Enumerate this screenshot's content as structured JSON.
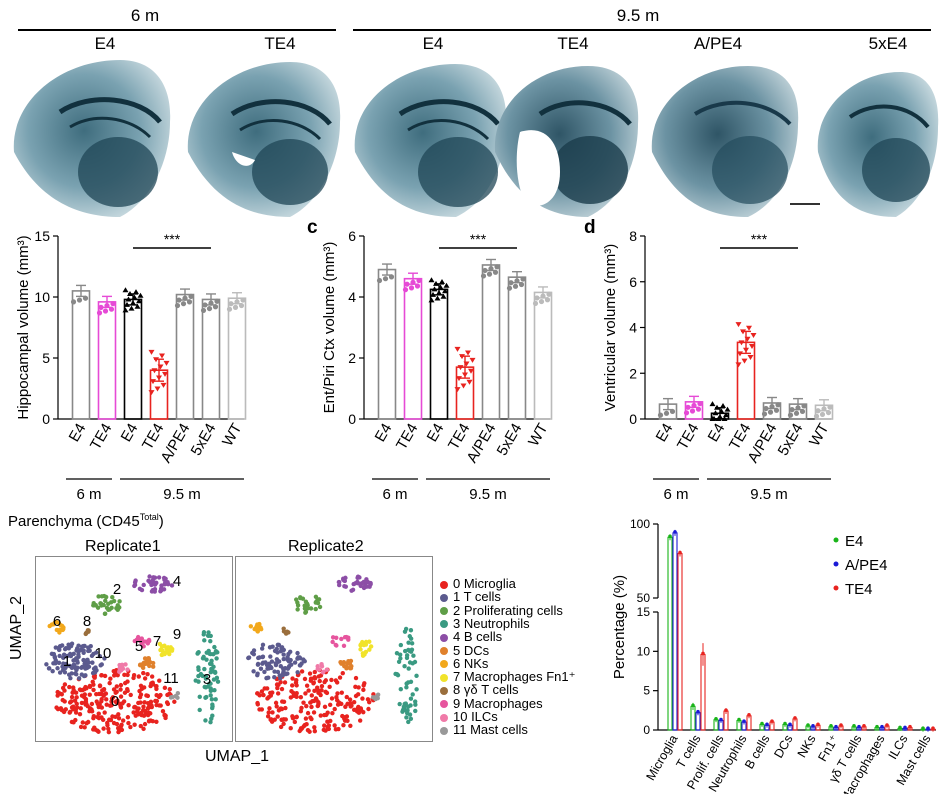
{
  "headers": {
    "group_6m": "6 m",
    "group_95m": "9.5 m",
    "top_labels": [
      "E4",
      "TE4",
      "E4",
      "TE4",
      "A/PE4",
      "5xE4"
    ]
  },
  "bar_panels": {
    "c_label": "c",
    "d_label": "d",
    "categories": [
      "E4",
      "TE4",
      "E4",
      "TE4",
      "A/PE4",
      "5xE4",
      "WT"
    ],
    "age_6m": "6 m",
    "age_95m": "9.5 m",
    "sig": "***"
  },
  "chart_data": [
    {
      "type": "bar",
      "ylabel": "Hippocampal volume (mm³)",
      "categories": [
        "E4",
        "TE4",
        "E4",
        "TE4",
        "A/PE4",
        "5xE4",
        "WT"
      ],
      "values": [
        10.5,
        9.6,
        9.8,
        4.0,
        10.2,
        9.8,
        9.9
      ],
      "ylim": [
        0,
        15
      ],
      "yticks": [
        "0",
        "5",
        "10",
        "15"
      ],
      "colors": [
        "#888888",
        "#e64ad6",
        "#000000",
        "#e8231f",
        "#888888",
        "#888888",
        "#bbbbbb"
      ]
    },
    {
      "type": "bar",
      "ylabel": "Ent/Piri Ctx volume (mm³)",
      "categories": [
        "E4",
        "TE4",
        "E4",
        "TE4",
        "A/PE4",
        "5xE4",
        "WT"
      ],
      "values": [
        4.9,
        4.6,
        4.25,
        1.7,
        5.05,
        4.65,
        4.15
      ],
      "ylim": [
        0,
        6
      ],
      "yticks": [
        "0",
        "2",
        "4",
        "6"
      ],
      "colors": [
        "#888888",
        "#e64ad6",
        "#000000",
        "#e8231f",
        "#888888",
        "#888888",
        "#bbbbbb"
      ]
    },
    {
      "type": "bar",
      "ylabel": "Ventricular volume (mm³)",
      "categories": [
        "E4",
        "TE4",
        "E4",
        "TE4",
        "A/PE4",
        "5xE4",
        "WT"
      ],
      "values": [
        0.65,
        0.75,
        0.25,
        3.35,
        0.7,
        0.65,
        0.6
      ],
      "ylim": [
        0,
        8
      ],
      "yticks": [
        "0",
        "2",
        "4",
        "6",
        "8"
      ],
      "colors": [
        "#888888",
        "#e64ad6",
        "#000000",
        "#e8231f",
        "#888888",
        "#888888",
        "#bbbbbb"
      ]
    },
    {
      "type": "bar",
      "ylabel": "Percentage (%)",
      "categories": [
        "Microglia",
        "T cells",
        "Prolif. cells",
        "Neutrophils",
        "B cells",
        "DCs",
        "NKs",
        "Fn1⁺",
        "γδ T cells",
        "Macrophages",
        "ILCs",
        "Mast cells"
      ],
      "series": [
        {
          "name": "E4",
          "values": [
            91,
            3,
            1.3,
            1.2,
            0.7,
            0.7,
            0.5,
            0.4,
            0.4,
            0.3,
            0.2,
            0.1
          ]
        },
        {
          "name": "A/PE4",
          "values": [
            94,
            2.2,
            1.2,
            1.0,
            0.6,
            0.6,
            0.4,
            0.3,
            0.3,
            0.3,
            0.2,
            0.1
          ]
        },
        {
          "name": "TE4",
          "values": [
            80,
            9.6,
            2.4,
            1.8,
            1.0,
            1.4,
            0.6,
            0.5,
            0.4,
            0.5,
            0.3,
            0.1
          ]
        }
      ],
      "yticks": [
        "0",
        "5",
        "10",
        "15",
        "50",
        "100"
      ],
      "colors": [
        "#19b419",
        "#1a1ad6",
        "#e8231f"
      ]
    }
  ],
  "umap": {
    "title": "Parenchyma (CD45",
    "title_sup": "Total",
    "title_end": ")",
    "replicate1": "Replicate1",
    "replicate2": "Replicate2",
    "xlabel": "UMAP_1",
    "ylabel": "UMAP_2",
    "cluster_numbers": [
      "0",
      "1",
      "2",
      "4",
      "5",
      "6",
      "7",
      "8",
      "9",
      "10",
      "11",
      "3"
    ],
    "legend": [
      {
        "label": "0 Microglia",
        "color": "#e8231f"
      },
      {
        "label": "1 T cells",
        "color": "#5b5a8e"
      },
      {
        "label": "2 Proliferating cells",
        "color": "#5f9e47"
      },
      {
        "label": "3 Neutrophils",
        "color": "#3a9a82"
      },
      {
        "label": "4 B cells",
        "color": "#8c4ea6"
      },
      {
        "label": "5 DCs",
        "color": "#e0812c"
      },
      {
        "label": "6 NKs",
        "color": "#f2a81b"
      },
      {
        "label": "7 Macrophages Fn1⁺",
        "color": "#f1e32a"
      },
      {
        "label": "8 γδ T cells",
        "color": "#9a6e3c"
      },
      {
        "label": "9 Macrophages",
        "color": "#e6559e"
      },
      {
        "label": "10 ILCs",
        "color": "#f07aa8"
      },
      {
        "label": "11 Mast cells",
        "color": "#999999"
      }
    ]
  },
  "pct_legend": [
    {
      "label": "E4",
      "color": "#19b419"
    },
    {
      "label": "A/PE4",
      "color": "#1a1ad6"
    },
    {
      "label": "TE4",
      "color": "#e8231f"
    }
  ]
}
